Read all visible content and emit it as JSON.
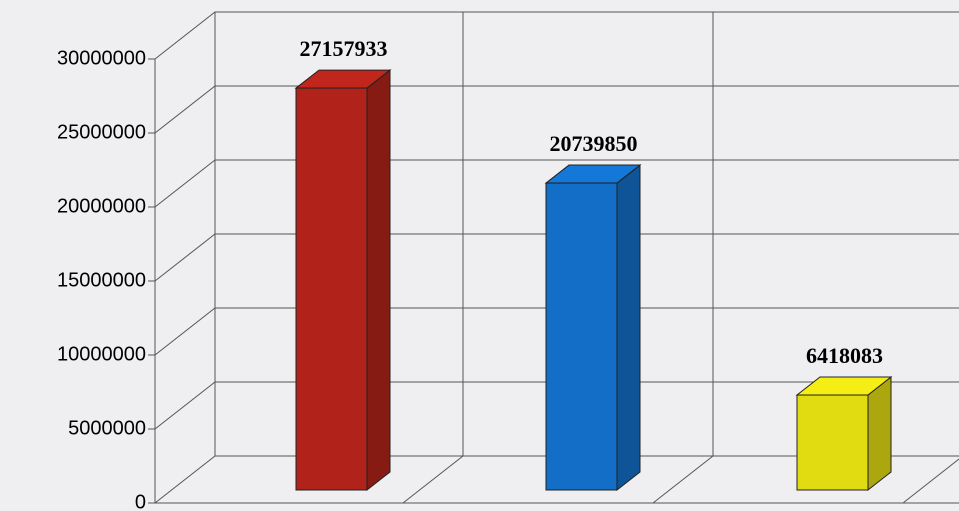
{
  "chart_data": {
    "type": "bar3d",
    "categories": [
      null,
      null,
      null
    ],
    "values": [
      27157933,
      20739850,
      6418083
    ],
    "colors": [
      "#c0261c",
      "#1478d8",
      "#f5ee14"
    ],
    "ylim": [
      0,
      30000000
    ],
    "yticks": [
      0,
      5000000,
      10000000,
      15000000,
      20000000,
      25000000,
      30000000
    ],
    "grid": true
  }
}
